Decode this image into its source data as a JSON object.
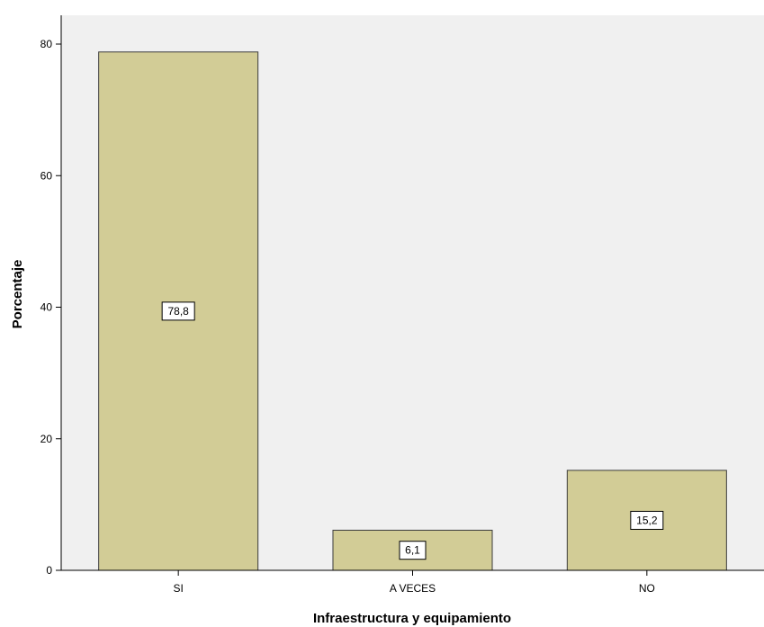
{
  "chart_data": {
    "type": "bar",
    "categories": [
      "SI",
      "A VECES",
      "NO"
    ],
    "values": [
      78.8,
      6.1,
      15.2
    ],
    "data_labels": [
      "78,8",
      "6,1",
      "15,2"
    ],
    "title": "",
    "xlabel": "Infraestructura y equipamiento",
    "ylabel": "Porcentaje",
    "ylim": [
      0,
      80
    ],
    "yticks": [
      0,
      20,
      40,
      60,
      80
    ],
    "grid": false,
    "legend": "none",
    "colors": {
      "bar_fill": "#d2cc96",
      "bar_stroke": "#3c3c3c",
      "plot_background": "#f0f0f0",
      "label_box_fill": "#ffffff"
    }
  }
}
